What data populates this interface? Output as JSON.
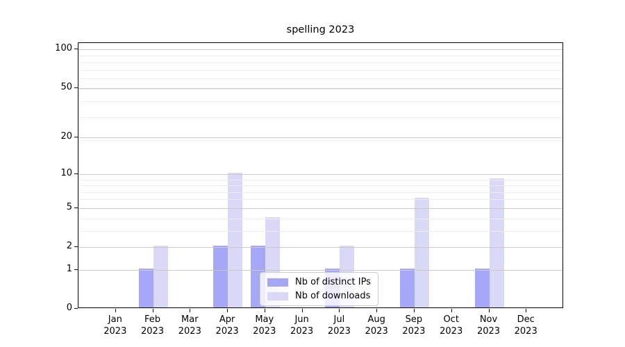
{
  "figure": {
    "title": "spelling 2023"
  },
  "chart_data": {
    "type": "bar",
    "title": "spelling 2023",
    "categories": [
      "Jan 2023",
      "Feb 2023",
      "Mar 2023",
      "Apr 2023",
      "May 2023",
      "Jun 2023",
      "Jul 2023",
      "Aug 2023",
      "Sep 2023",
      "Oct 2023",
      "Nov 2023",
      "Dec 2023"
    ],
    "series": [
      {
        "name": "Nb of distinct IPs",
        "color": "#a7a7f7",
        "values": [
          0,
          1,
          0,
          2,
          2,
          0,
          1,
          0,
          1,
          0,
          1,
          0
        ]
      },
      {
        "name": "Nb of downloads",
        "color": "#d9d9f7",
        "values": [
          0,
          2,
          0,
          10,
          4,
          0,
          2,
          0,
          6,
          0,
          9,
          0
        ]
      }
    ],
    "xlabel": "",
    "ylabel": "",
    "yscale": "log1p",
    "ylim": [
      0,
      112
    ],
    "yticks": [
      0,
      1,
      2,
      5,
      10,
      20,
      50,
      100
    ],
    "minor_yticks": [
      3,
      4,
      6,
      7,
      8,
      9,
      19,
      29,
      39,
      49,
      59,
      69,
      79,
      89
    ],
    "grid": true,
    "legend_position": "lower center"
  },
  "legend": {
    "items": [
      {
        "label": "Nb of distinct IPs",
        "color": "#a7a7f7"
      },
      {
        "label": "Nb of downloads",
        "color": "#d9d9f7"
      }
    ]
  },
  "colors": {
    "bar_distinct_ips": "#a7a7f7",
    "bar_downloads": "#d9d9f7",
    "grid_major": "#c9c9c9",
    "grid_minor": "#ececec",
    "axis": "#000000",
    "legend_border": "#cccccc",
    "legend_background": "rgba(255,255,255,0.8)"
  }
}
